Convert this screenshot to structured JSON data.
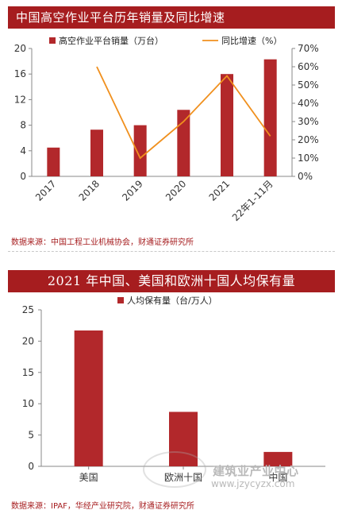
{
  "chart_data": [
    {
      "type": "bar+line",
      "title": "中国高空作业平台历年销量及同比增速",
      "categories": [
        "2017",
        "2018",
        "2019",
        "2020",
        "2021",
        "22年1-11月"
      ],
      "series": [
        {
          "name": "高空作业平台销量（万台）",
          "type": "bar",
          "axis": "left",
          "color": "#b2282b",
          "values": [
            4.5,
            7.3,
            8.0,
            10.4,
            16.0,
            18.3
          ]
        },
        {
          "name": "同比增速（%）",
          "type": "line",
          "axis": "right",
          "color": "#f0901e",
          "values": [
            null,
            60,
            10,
            30,
            55,
            22
          ]
        }
      ],
      "ylim_left": [
        0,
        20
      ],
      "yticks_left": [
        "0",
        "4",
        "8",
        "12",
        "16",
        "20"
      ],
      "ylim_right": [
        0,
        70
      ],
      "yticks_right": [
        "0%",
        "10%",
        "20%",
        "30%",
        "40%",
        "50%",
        "60%",
        "70%"
      ],
      "source": "数据来源：中国工程工业机械协会，财通证券研究所",
      "legend": "top",
      "grid": false
    },
    {
      "type": "bar",
      "title": "2021 年中国、美国和欧洲十国人均保有量",
      "categories": [
        "美国",
        "欧洲十国",
        "中国"
      ],
      "series": [
        {
          "name": "人均保有量（台/万人）",
          "color": "#b2282b",
          "values": [
            21.7,
            8.7,
            2.3
          ]
        }
      ],
      "ylim": [
        0,
        25
      ],
      "yticks": [
        "0",
        "5",
        "10",
        "15",
        "20",
        "25"
      ],
      "source": "数据来源：IPAF，华经产业研究院，财通证券研究所",
      "legend": "top",
      "grid": false
    }
  ],
  "watermark": {
    "text": "建筑业产业中心",
    "url": "www.jzycyzx.com"
  }
}
